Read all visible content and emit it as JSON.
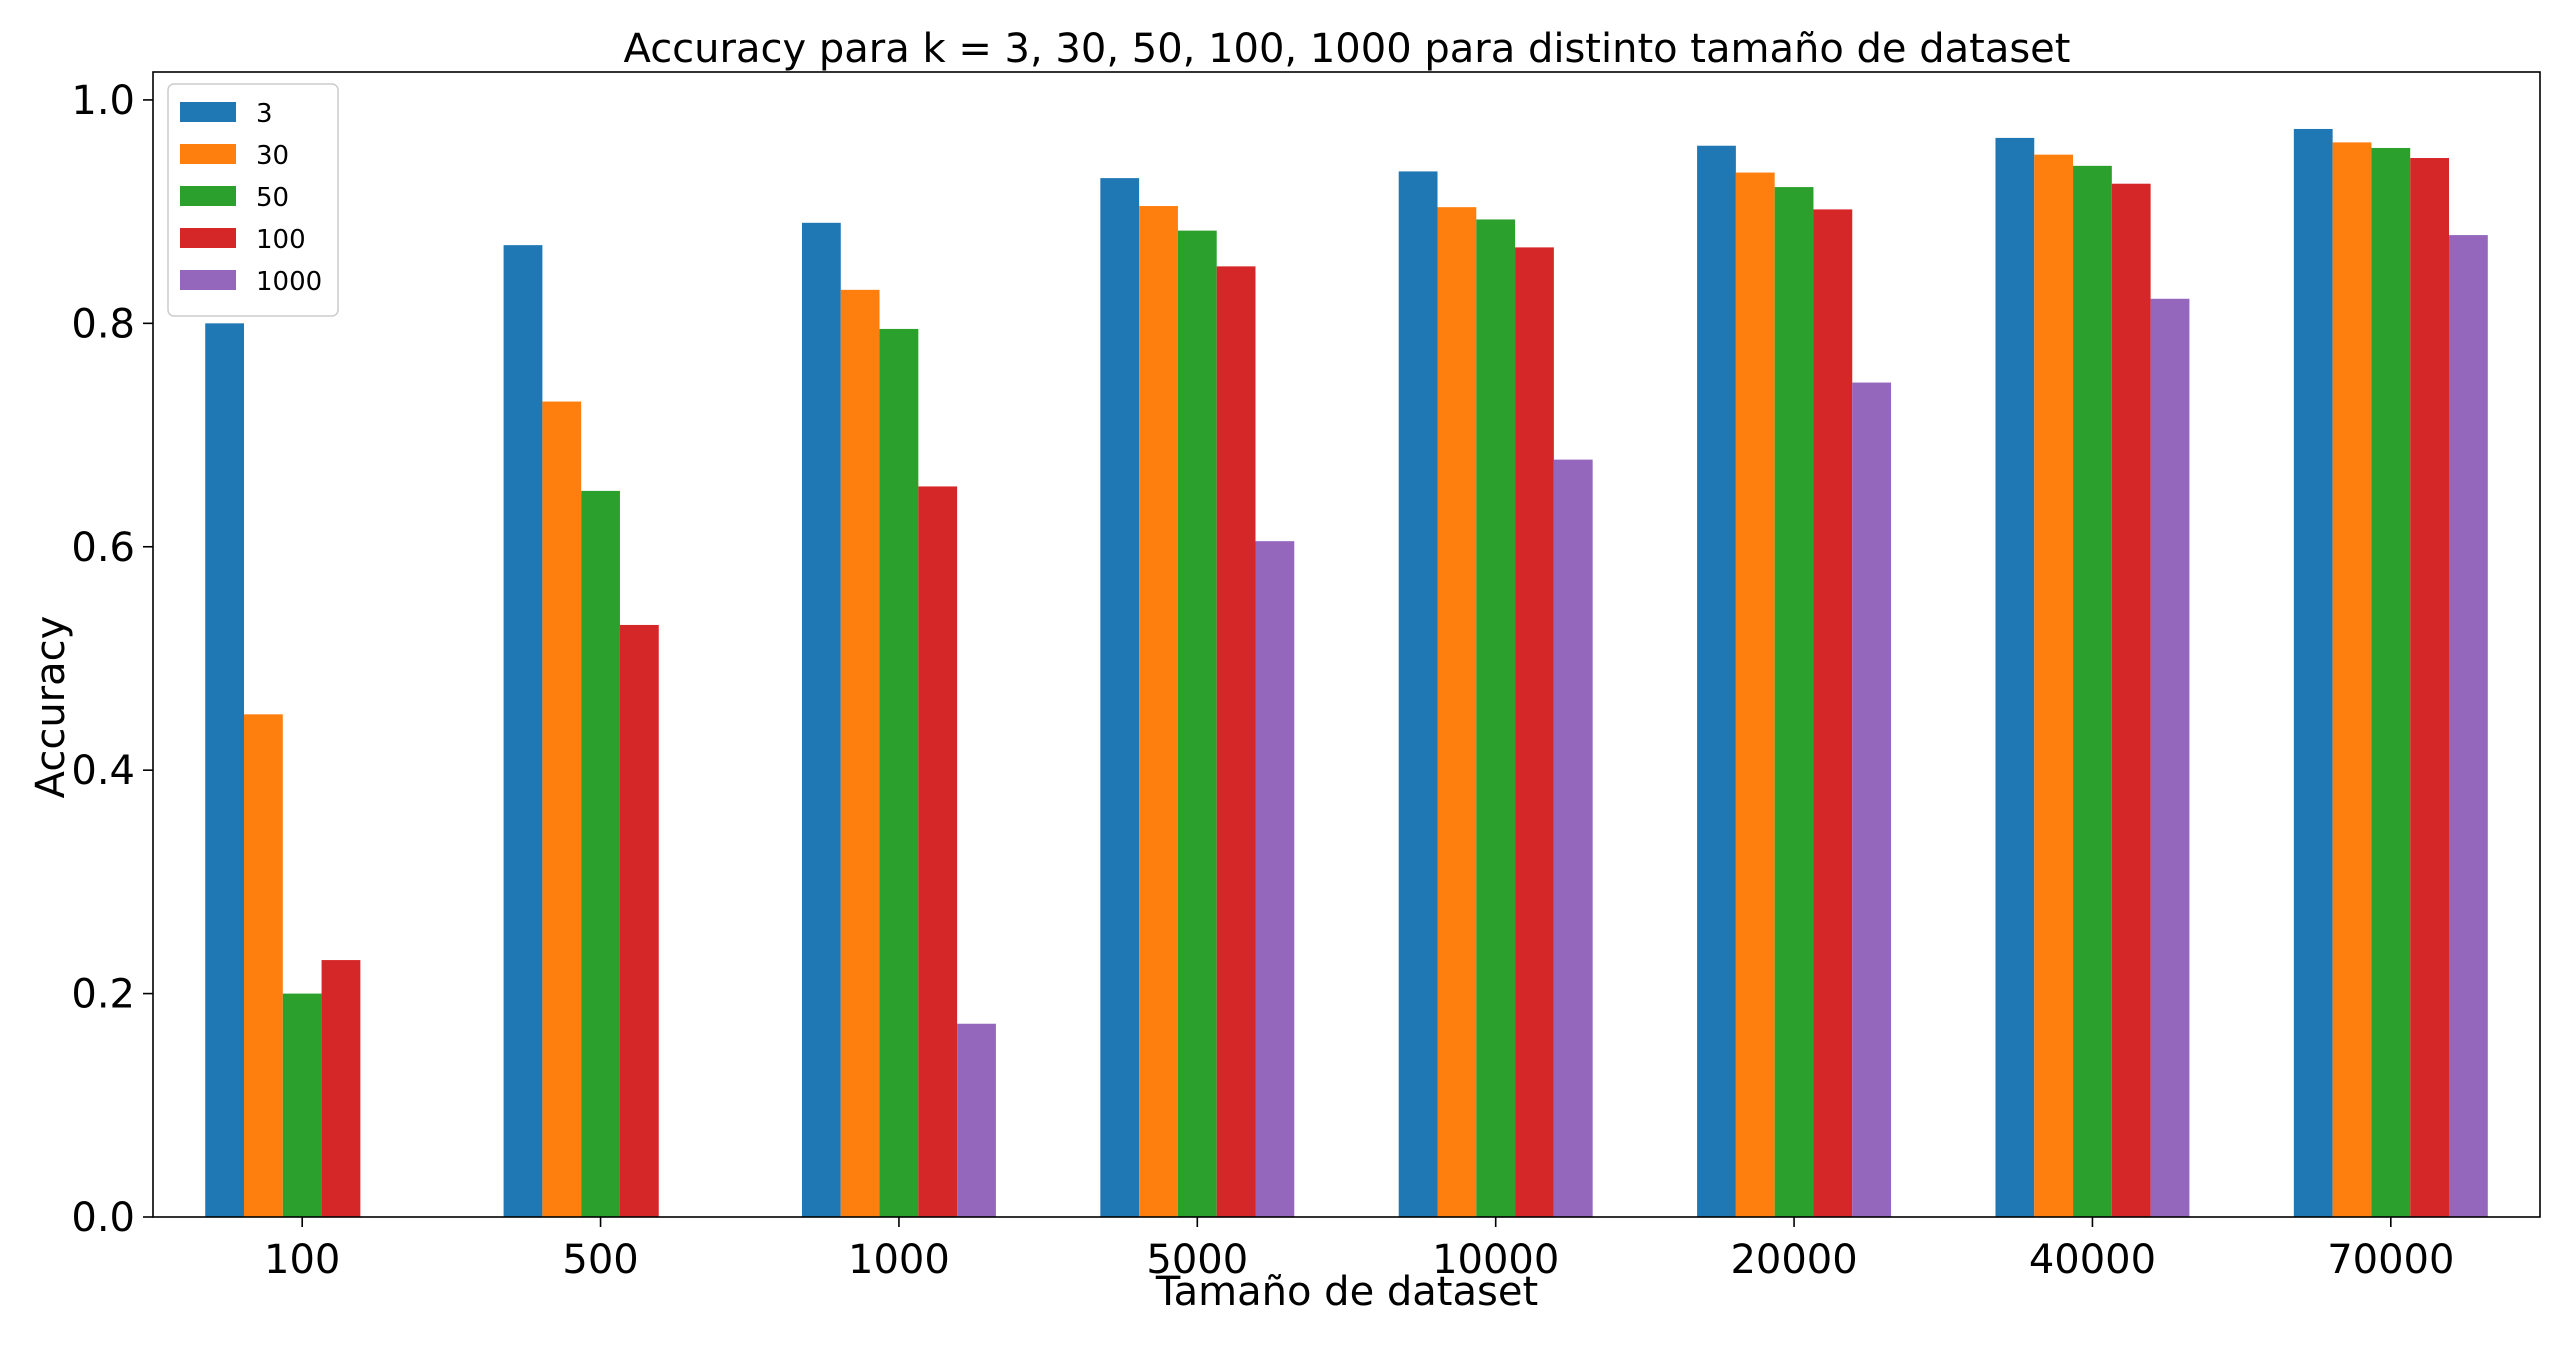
{
  "chart_data": {
    "type": "bar",
    "title": "Accuracy para k = 3, 30, 50, 100, 1000 para distinto tamaño de dataset",
    "xlabel": "Tamaño de dataset",
    "ylabel": "Accuracy",
    "categories": [
      "100",
      "500",
      "1000",
      "5000",
      "10000",
      "20000",
      "40000",
      "70000"
    ],
    "ylim": [
      0,
      1.025
    ],
    "yticks": [
      0.0,
      0.2,
      0.4,
      0.6,
      0.8,
      1.0
    ],
    "ytick_labels": [
      "0.0",
      "0.2",
      "0.4",
      "0.6",
      "0.8",
      "1.0"
    ],
    "grid": false,
    "legend_position": "top-left",
    "series": [
      {
        "name": "3",
        "color": "#1f77b4",
        "values": [
          0.8,
          0.87,
          0.89,
          0.93,
          0.936,
          0.959,
          0.966,
          0.974
        ]
      },
      {
        "name": "30",
        "color": "#ff7f0e",
        "values": [
          0.45,
          0.73,
          0.83,
          0.905,
          0.904,
          0.935,
          0.951,
          0.962
        ]
      },
      {
        "name": "50",
        "color": "#2ca02c",
        "values": [
          0.2,
          0.65,
          0.795,
          0.883,
          0.893,
          0.922,
          0.941,
          0.957
        ]
      },
      {
        "name": "100",
        "color": "#d62728",
        "values": [
          0.23,
          0.53,
          0.654,
          0.851,
          0.868,
          0.902,
          0.925,
          0.948
        ]
      },
      {
        "name": "1000",
        "color": "#9467bd",
        "values": [
          null,
          null,
          0.173,
          0.605,
          0.678,
          0.747,
          0.822,
          0.879
        ]
      }
    ]
  }
}
